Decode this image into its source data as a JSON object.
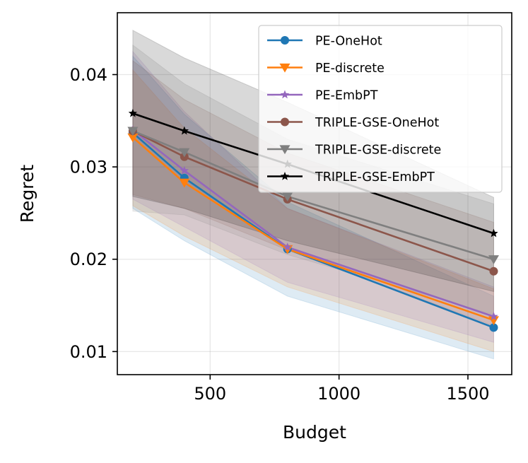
{
  "chart_data": {
    "type": "line",
    "title": "",
    "xlabel": "Budget",
    "ylabel": "Regret",
    "xlim": [
      140,
      1670
    ],
    "ylim": [
      0.0075,
      0.0467
    ],
    "x_ticks": [
      500,
      1000,
      1500
    ],
    "x_tick_labels": [
      "500",
      "1000",
      "1500"
    ],
    "y_ticks": [
      0.01,
      0.02,
      0.03,
      0.04
    ],
    "y_tick_labels": [
      "0.01",
      "0.02",
      "0.03",
      "0.04"
    ],
    "grid": true,
    "legend_position": "top-right",
    "x": [
      200,
      400,
      800,
      1600
    ],
    "series": [
      {
        "name": "PE-OneHot",
        "color": "#1f77b4",
        "marker": "circle",
        "values": [
          0.0337,
          0.0288,
          0.0211,
          0.0126
        ],
        "band_lower": [
          0.0255,
          0.022,
          0.016,
          0.0092
        ],
        "band_upper": [
          0.042,
          0.0357,
          0.0262,
          0.016
        ]
      },
      {
        "name": "PE-discrete",
        "color": "#ff7f0e",
        "marker": "triangle-down",
        "values": [
          0.0332,
          0.0283,
          0.0211,
          0.0134
        ],
        "band_lower": [
          0.0258,
          0.0225,
          0.017,
          0.01
        ],
        "band_upper": [
          0.0405,
          0.0342,
          0.0255,
          0.0168
        ]
      },
      {
        "name": "PE-EmbPT",
        "color": "#9467bd",
        "marker": "star",
        "values": [
          0.034,
          0.0296,
          0.0213,
          0.0138
        ],
        "band_lower": [
          0.0265,
          0.0235,
          0.0175,
          0.011
        ],
        "band_upper": [
          0.0425,
          0.036,
          0.0255,
          0.017
        ]
      },
      {
        "name": "TRIPLE-GSE-OneHot",
        "color": "#8c564b",
        "marker": "circle",
        "values": [
          0.0339,
          0.0311,
          0.0265,
          0.0187
        ],
        "band_lower": [
          0.027,
          0.0255,
          0.021,
          0.0128
        ],
        "band_upper": [
          0.0415,
          0.0373,
          0.0315,
          0.024
        ]
      },
      {
        "name": "TRIPLE-GSE-discrete",
        "color": "#7f7f7f",
        "marker": "triangle-down",
        "values": [
          0.0339,
          0.0316,
          0.0268,
          0.02
        ],
        "band_lower": [
          0.0252,
          0.0248,
          0.0205,
          0.014
        ],
        "band_upper": [
          0.0432,
          0.039,
          0.033,
          0.026
        ]
      },
      {
        "name": "TRIPLE-GSE-EmbPT",
        "color": "#000000",
        "marker": "star",
        "values": [
          0.0358,
          0.0339,
          0.0303,
          0.0228
        ],
        "band_lower": [
          0.0268,
          0.0255,
          0.022,
          0.0165
        ],
        "band_upper": [
          0.0448,
          0.0418,
          0.037,
          0.0267
        ]
      }
    ]
  }
}
